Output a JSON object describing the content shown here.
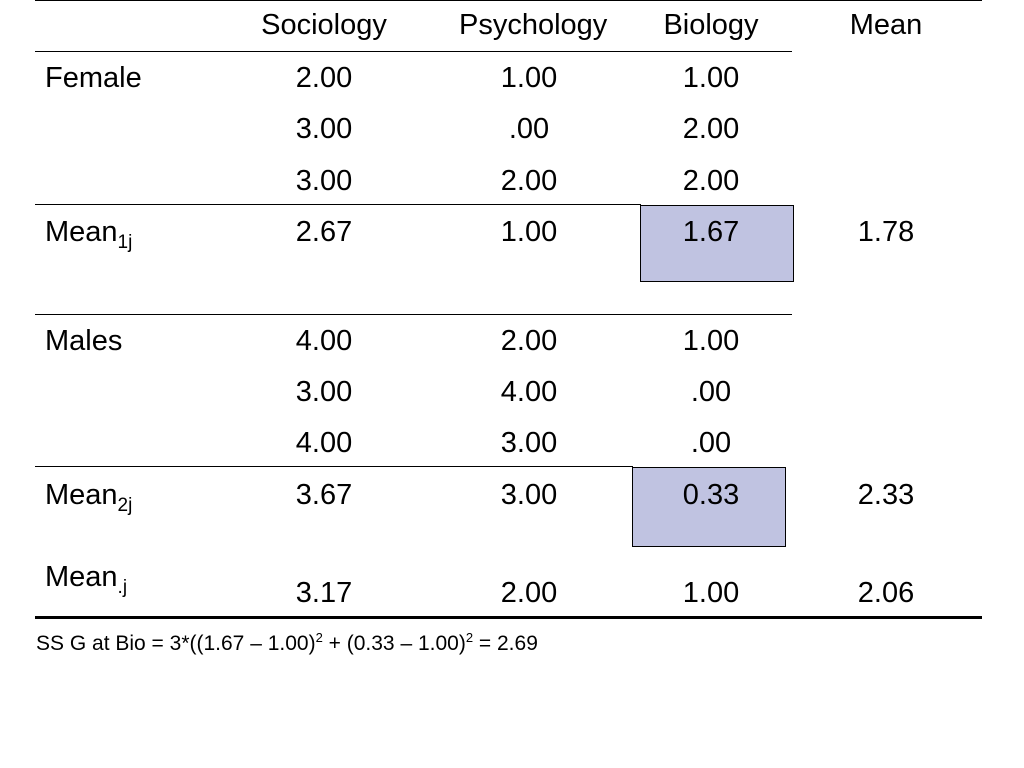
{
  "colors": {
    "highlight": "#c0c3e1",
    "rule": "#000000"
  },
  "table": {
    "columns": [
      "Sociology",
      "Psychology",
      "Biology",
      "Mean"
    ],
    "female": {
      "label": "Female",
      "rows": [
        [
          "2.00",
          "1.00",
          "1.00"
        ],
        [
          "3.00",
          ".00",
          "2.00"
        ],
        [
          "3.00",
          "2.00",
          "2.00"
        ]
      ]
    },
    "mean_female": {
      "label": "Mean",
      "sub": "1j",
      "values": [
        "2.67",
        "1.00",
        "1.67"
      ],
      "mean": "1.78"
    },
    "males": {
      "label": "Males",
      "rows": [
        [
          "4.00",
          "2.00",
          "1.00"
        ],
        [
          "3.00",
          "4.00",
          ".00"
        ],
        [
          "4.00",
          "3.00",
          ".00"
        ]
      ]
    },
    "mean_male": {
      "label": "Mean",
      "sub": "2j",
      "values": [
        "3.67",
        "3.00",
        "0.33"
      ],
      "mean": "2.33"
    },
    "mean_total": {
      "label": "Mean",
      "sub": ".j",
      "values": [
        "3.17",
        "2.00",
        "1.00"
      ],
      "mean": "2.06"
    }
  },
  "footnote": {
    "part1": "SS G at Bio = 3*((1.67 – 1.00)",
    "sup1": "2",
    "part2": " + (0.33 – 1.00)",
    "sup2": "2",
    "part3": " = 2.69"
  }
}
